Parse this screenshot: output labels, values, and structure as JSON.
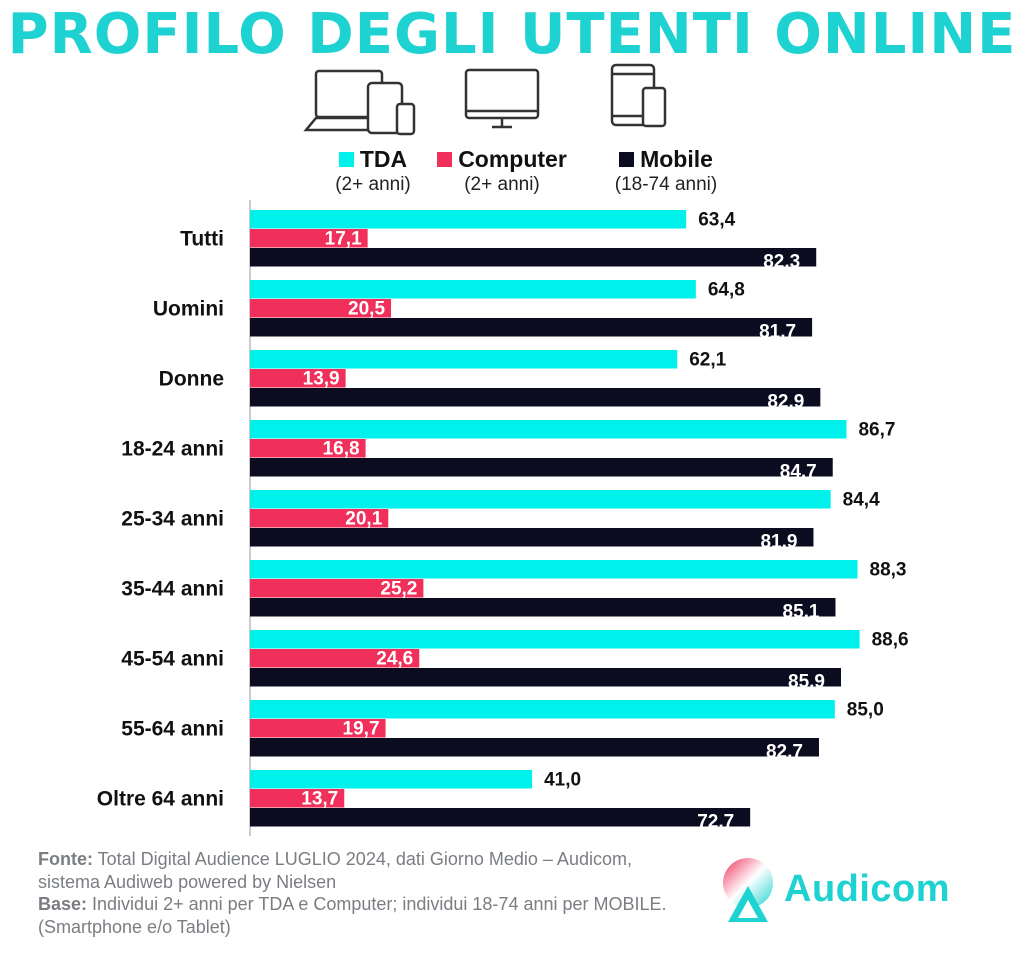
{
  "title": "PROFILO DEGLI UTENTI ONLINE",
  "colors": {
    "title": "#1ed2d2",
    "tda": "#00f0ec",
    "computer": "#f0305a",
    "mobile": "#0c0c20",
    "axis": "#bbbbbb"
  },
  "legend": [
    {
      "name": "TDA",
      "sub": "(2+ anni)",
      "color": "#00f0ec"
    },
    {
      "name": "Computer",
      "sub": "(2+ anni)",
      "color": "#f0305a"
    },
    {
      "name": "Mobile",
      "sub": "(18-74 anni)",
      "color": "#0c0c20"
    }
  ],
  "device_icons": [
    "laptop-tablet-phone-icon",
    "desktop-monitor-icon",
    "tablet-phone-icon"
  ],
  "chart_data": {
    "type": "bar",
    "orientation": "horizontal",
    "categories": [
      "Tutti",
      "Uomini",
      "Donne",
      "18-24 anni",
      "25-34 anni",
      "35-44 anni",
      "45-54 anni",
      "55-64 anni",
      "Oltre 64 anni"
    ],
    "series": [
      {
        "name": "TDA",
        "values": [
          63.4,
          64.8,
          62.1,
          86.7,
          84.4,
          88.3,
          88.6,
          85.0,
          41.0
        ],
        "labels": [
          "63,4",
          "64,8",
          "62,1",
          "86,7",
          "84,4",
          "88,3",
          "88,6",
          "85,0",
          "41,0"
        ]
      },
      {
        "name": "Computer",
        "values": [
          17.1,
          20.5,
          13.9,
          16.8,
          20.1,
          25.2,
          24.6,
          19.7,
          13.7
        ],
        "labels": [
          "17,1",
          "20,5",
          "13,9",
          "16,8",
          "20,1",
          "25,2",
          "24,6",
          "19,7",
          "13,7"
        ]
      },
      {
        "name": "Mobile",
        "values": [
          82.3,
          81.7,
          82.9,
          84.7,
          81.9,
          85.1,
          85.9,
          82.7,
          72.7
        ],
        "labels": [
          "82,3",
          "81,7",
          "82,9",
          "84,7",
          "81,9",
          "85,1",
          "85,9",
          "82,7",
          "72,7"
        ]
      }
    ],
    "xlim": [
      0,
      100
    ],
    "grid": false,
    "legend_position": "top"
  },
  "footer": {
    "fonte_label": "Fonte:",
    "fonte_text": " Total Digital Audience LUGLIO 2024, dati Giorno Medio – Audicom, sistema Audiweb powered by Nielsen",
    "base_label": "Base:",
    "base_text": "  Individui 2+ anni per TDA e Computer; individui 18-74 anni per MOBILE.(Smartphone e/o Tablet)"
  },
  "logo": {
    "text": "Audicom",
    "color": "#1ed2d2"
  }
}
